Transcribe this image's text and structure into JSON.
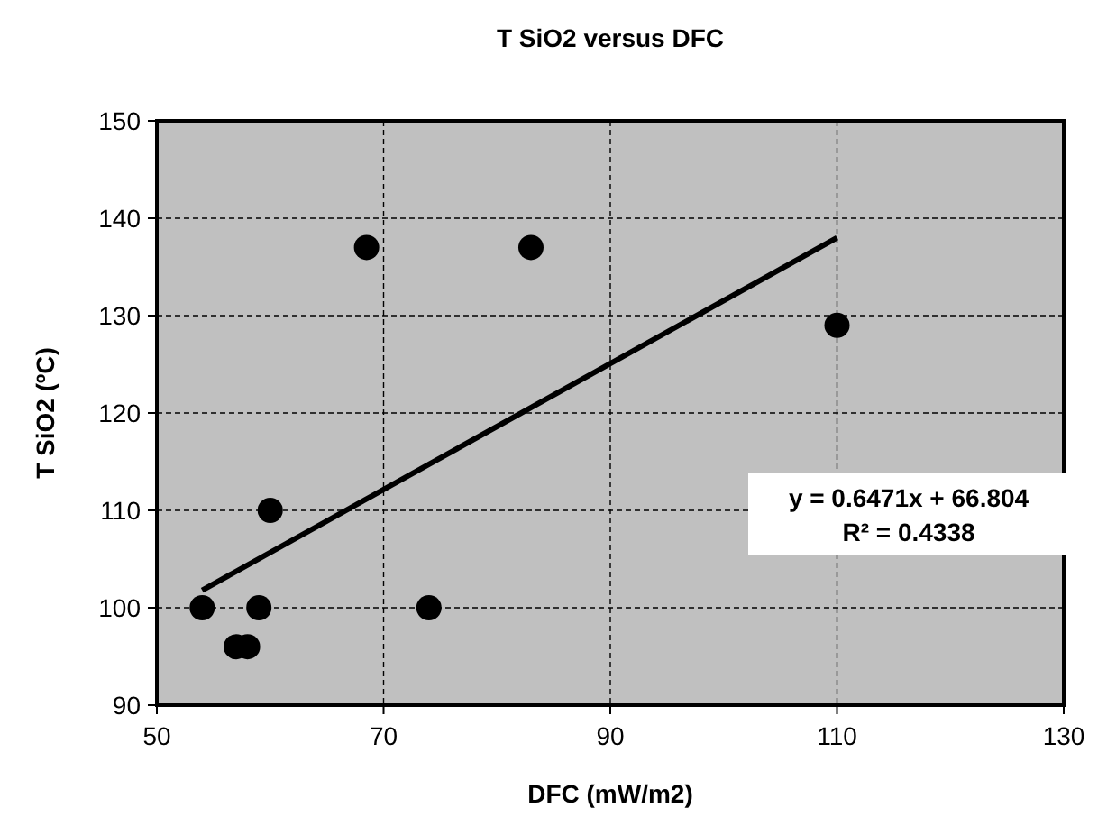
{
  "chart_data": {
    "type": "scatter",
    "title": "T SiO2 versus DFC",
    "xlabel": "DFC (mW/m2)",
    "ylabel": "T SiO2 (ºC)",
    "xlim": [
      50,
      130
    ],
    "xticks": [
      50,
      70,
      90,
      110,
      130
    ],
    "ylim": [
      90,
      150
    ],
    "yticks": [
      90,
      100,
      110,
      120,
      130,
      140,
      150
    ],
    "grid": true,
    "series": [
      {
        "color": "#000000",
        "marker": "circle",
        "x": [
          54,
          57,
          58,
          59,
          60,
          68.5,
          74,
          83,
          110
        ],
        "values": [
          100,
          96,
          96,
          100,
          110,
          137,
          100,
          137,
          129
        ]
      },
      {
        "type": "line",
        "color": "#000000",
        "x": [
          54,
          110
        ],
        "values": [
          101.8,
          138
        ],
        "line_style": "solid"
      }
    ],
    "annotations": [
      "y = 0.6471x  + 66.804\nR² = 0.4338"
    ]
  }
}
